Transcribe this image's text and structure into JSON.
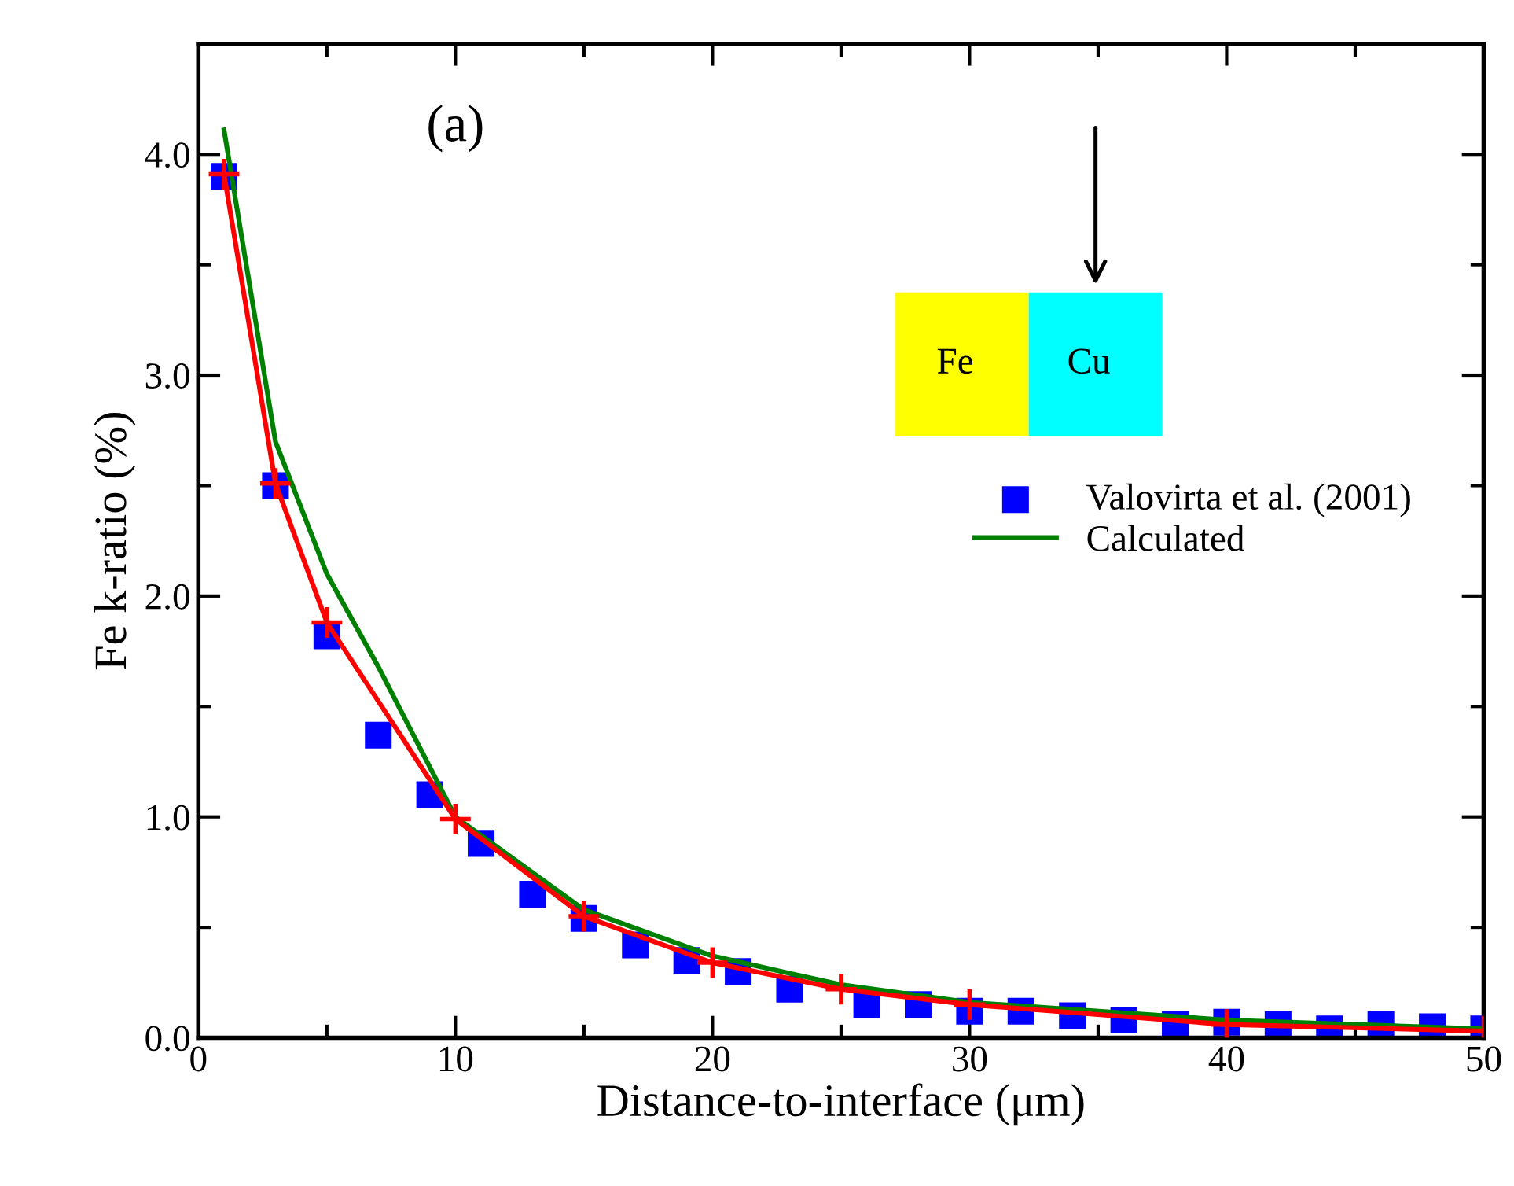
{
  "chart_data": {
    "type": "line",
    "xlabel": "Distance-to-interface (μm)",
    "ylabel": "Fe k-ratio (%)",
    "annotations": [
      "(a)",
      "Fe",
      "Cu"
    ],
    "xlim": [
      0,
      50
    ],
    "ylim": [
      0,
      4.5
    ],
    "xticks": [
      0,
      {
        "value": 5,
        "label": null
      },
      10,
      {
        "value": 15,
        "label": null
      },
      20,
      {
        "value": 25,
        "label": null
      },
      30,
      {
        "value": 35,
        "label": null
      },
      40,
      {
        "value": 45,
        "label": null
      },
      50
    ],
    "yticks": [
      {
        "value": 0,
        "label": "0.0"
      },
      {
        "value": 0.5,
        "label": null
      },
      {
        "value": 1,
        "label": "1.0"
      },
      {
        "value": 1.5,
        "label": null
      },
      {
        "value": 2,
        "label": "2.0"
      },
      {
        "value": 2.5,
        "label": null
      },
      {
        "value": 3,
        "label": "3.0"
      },
      {
        "value": 3.5,
        "label": null
      },
      {
        "value": 4,
        "label": "4.0"
      }
    ],
    "grid": false,
    "legend": "right",
    "series": [
      {
        "name": "Valovirta et al. (2001)",
        "type": "scatter",
        "marker": "square",
        "color": "#0000ff",
        "x": [
          1,
          3,
          5,
          7,
          9,
          11,
          13,
          15,
          17,
          19,
          21,
          23,
          26,
          28,
          30,
          32,
          34,
          36,
          38,
          40,
          42,
          44,
          46,
          48,
          50
        ],
        "values": [
          3.9,
          2.5,
          1.82,
          1.37,
          1.1,
          0.88,
          0.65,
          0.54,
          0.42,
          0.35,
          0.3,
          0.22,
          0.15,
          0.15,
          0.12,
          0.12,
          0.1,
          0.08,
          0.06,
          0.07,
          0.06,
          0.04,
          0.06,
          0.05,
          0.04
        ]
      },
      {
        "name": "Calculated",
        "marker": "none",
        "color": "#008000",
        "x": [
          1,
          3,
          5,
          7,
          10,
          15,
          20,
          25,
          30,
          40,
          50
        ],
        "values": [
          4.11,
          2.7,
          2.1,
          1.68,
          1.0,
          0.58,
          0.37,
          0.24,
          0.16,
          0.08,
          0.04
        ]
      },
      {
        "marker": "cross",
        "color": "#ff0000",
        "x": [
          1,
          3,
          5,
          10,
          15,
          20,
          25,
          30,
          40,
          50
        ],
        "values": [
          3.91,
          2.51,
          1.88,
          0.99,
          0.55,
          0.34,
          0.22,
          0.15,
          0.06,
          0.03
        ]
      }
    ]
  }
}
